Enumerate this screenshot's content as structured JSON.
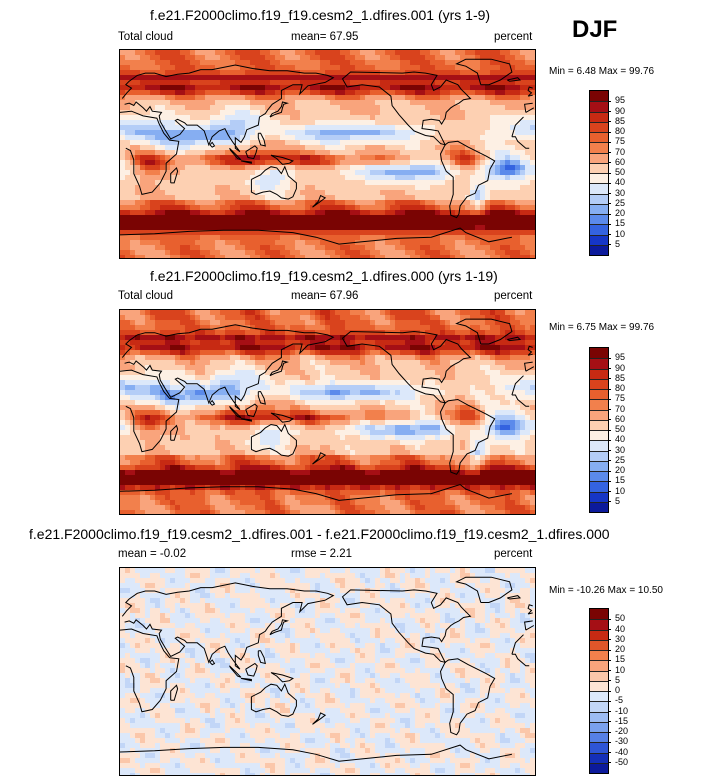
{
  "season": "DJF",
  "panels": [
    {
      "title": "f.e21.F2000climo.f19_f19.cesm2_1.dfires.001 (yrs 1-9)",
      "left_label": "Total cloud",
      "center_label": "mean=  67.95",
      "right_label": "percent",
      "minmax": "Min =   6.48 Max =  99.76",
      "levels": [
        "95",
        "90",
        "85",
        "80",
        "75",
        "70",
        "60",
        "50",
        "40",
        "30",
        "25",
        "20",
        "15",
        "10",
        "5"
      ]
    },
    {
      "title": "f.e21.F2000climo.f19_f19.cesm2_1.dfires.000 (yrs 1-19)",
      "left_label": "Total cloud",
      "center_label": "mean=  67.96",
      "right_label": "percent",
      "minmax": "Min =   6.75 Max =  99.76",
      "levels": [
        "95",
        "90",
        "85",
        "80",
        "75",
        "70",
        "60",
        "50",
        "40",
        "30",
        "25",
        "20",
        "15",
        "10",
        "5"
      ]
    },
    {
      "title": "f.e21.F2000climo.f19_f19.cesm2_1.dfires.001 - f.e21.F2000climo.f19_f19.cesm2_1.dfires.000",
      "left_label": "mean =  -0.02",
      "center_label": "rmse =   2.21",
      "right_label": "percent",
      "minmax": "Min = -10.26 Max =  10.50",
      "levels": [
        "50",
        "40",
        "30",
        "20",
        "15",
        "10",
        "5",
        "0",
        "-5",
        "-10",
        "-15",
        "-20",
        "-30",
        "-40",
        "-50"
      ]
    }
  ],
  "colors": {
    "abs_scale": [
      "#7a0403",
      "#a50f15",
      "#c72a13",
      "#d9431d",
      "#e8602e",
      "#f2804c",
      "#f9a47c",
      "#fdd0b2",
      "#fdf0e4",
      "#dce8fa",
      "#b4cdf7",
      "#86aef2",
      "#5b8aeb",
      "#3463e0",
      "#1636c6",
      "#0c1a9b"
    ],
    "diff_scale": [
      "#7a0403",
      "#a50f15",
      "#c72a13",
      "#e0562a",
      "#f2804c",
      "#f9a47c",
      "#fbc7aa",
      "#fde4d4",
      "#dce8fa",
      "#c2d6f7",
      "#9dbcf3",
      "#7aa1ee",
      "#5680e6",
      "#2e55d6",
      "#142fb8",
      "#0c1a9b"
    ],
    "land": "#000000"
  },
  "chart_data": [
    {
      "type": "heatmap",
      "title": "f.e21.F2000climo.f19_f19.cesm2_1.dfires.001 (yrs 1-9)",
      "variable": "Total cloud",
      "units": "percent",
      "mean": 67.95,
      "min": 6.48,
      "max": 99.76,
      "contour_levels": [
        5,
        10,
        15,
        20,
        25,
        30,
        40,
        50,
        60,
        70,
        75,
        80,
        85,
        90,
        95
      ]
    },
    {
      "type": "heatmap",
      "title": "f.e21.F2000climo.f19_f19.cesm2_1.dfires.000 (yrs 1-19)",
      "variable": "Total cloud",
      "units": "percent",
      "mean": 67.96,
      "min": 6.75,
      "max": 99.76,
      "contour_levels": [
        5,
        10,
        15,
        20,
        25,
        30,
        40,
        50,
        60,
        70,
        75,
        80,
        85,
        90,
        95
      ]
    },
    {
      "type": "heatmap",
      "title": "f.e21.F2000climo.f19_f19.cesm2_1.dfires.001 - f.e21.F2000climo.f19_f19.cesm2_1.dfires.000",
      "units": "percent",
      "mean": -0.02,
      "rmse": 2.21,
      "min": -10.26,
      "max": 10.5,
      "contour_levels": [
        -50,
        -40,
        -30,
        -20,
        -15,
        -10,
        -5,
        0,
        5,
        10,
        15,
        20,
        30,
        40,
        50
      ]
    }
  ]
}
